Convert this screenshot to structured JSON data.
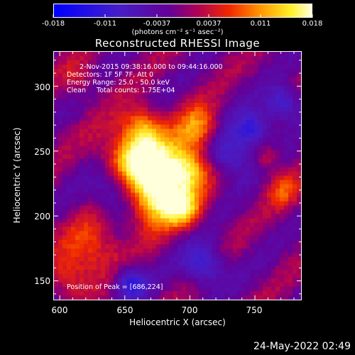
{
  "colorbar": {
    "ticks": [
      "-0.018",
      "-0.011",
      "-0.0037",
      "0.0037",
      "0.011",
      "0.018"
    ],
    "units": "(photons cm⁻² s⁻¹ asec⁻²)",
    "range": [
      -0.018,
      0.018
    ]
  },
  "annotations": {
    "line1": "2-Nov-2015 09:38:16.000 to 09:44:16.000",
    "line2": "Detectors: 1F 5F 7F, Att 0",
    "line3": "Energy Range: 25.0 - 50.0 keV",
    "line4": "Clean     Total counts: 1.75E+04",
    "peak": "Position of Peak = [686,224]"
  },
  "timestamp": "24-May-2022 02:49",
  "chart_data": {
    "type": "heatmap",
    "title": "Reconstructed RHESSI Image",
    "xlabel": "Heliocentric X (arcsec)",
    "ylabel": "Heliocentric Y (arcsec)",
    "xlim": [
      595,
      786
    ],
    "ylim": [
      135,
      327
    ],
    "xticks": [
      600,
      650,
      700,
      750
    ],
    "yticks": [
      150,
      200,
      250,
      300
    ],
    "colorscale_range": [
      -0.018,
      0.018
    ],
    "peak_position": [
      686,
      224
    ]
  }
}
